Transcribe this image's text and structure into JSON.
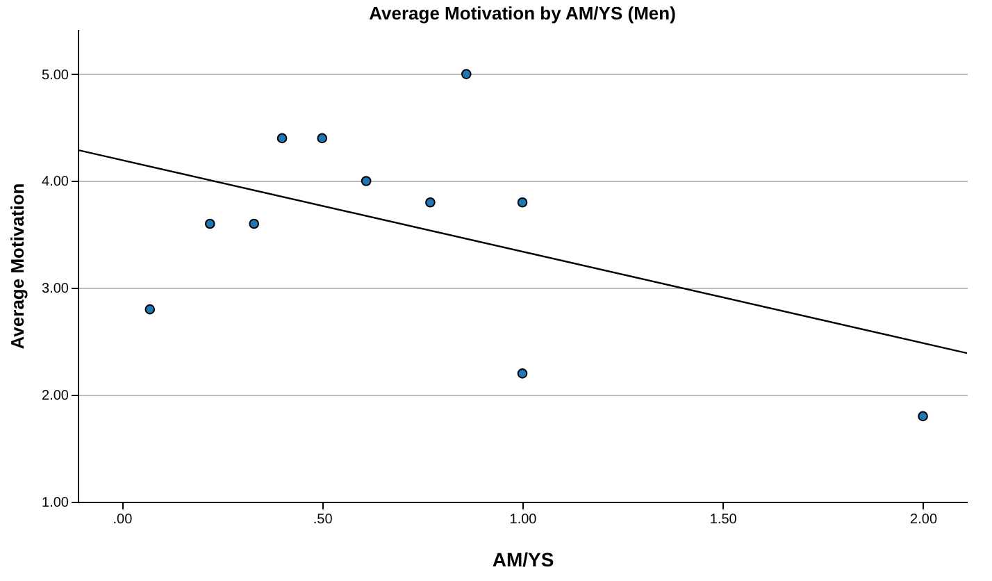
{
  "chart_data": {
    "type": "scatter",
    "title": "Average Motivation by AM/YS (Men)",
    "xlabel": "AM/YS",
    "ylabel": "Average Motivation",
    "series": [
      {
        "color": "#1f77b4",
        "marker": "circle",
        "x": [
          0.07,
          0.22,
          0.33,
          0.4,
          0.5,
          0.61,
          0.77,
          0.86,
          1.0,
          1.0,
          2.0
        ],
        "values": [
          2.8,
          3.6,
          3.6,
          4.4,
          4.4,
          4.0,
          3.8,
          5.0,
          3.8,
          2.2,
          1.8
        ]
      },
      {
        "type": "line",
        "color": "#000000",
        "x": [
          -0.11,
          2.11
        ],
        "values": [
          4.29,
          2.39
        ]
      }
    ],
    "xlim": [
      -0.11,
      2.11
    ],
    "ylim": [
      1,
      5.42
    ],
    "xticks": [
      {
        "value": 0,
        "label": ".00"
      },
      {
        "value": 0.5,
        "label": ".50"
      },
      {
        "value": 1,
        "label": "1.00"
      },
      {
        "value": 1.5,
        "label": "1.50"
      },
      {
        "value": 2,
        "label": "2.00"
      }
    ],
    "yticks": [
      {
        "value": 1,
        "label": "1.00"
      },
      {
        "value": 2,
        "label": "2.00"
      },
      {
        "value": 3,
        "label": "3.00"
      },
      {
        "value": 4,
        "label": "4.00"
      },
      {
        "value": 5,
        "label": "5.00"
      }
    ],
    "grid": "y",
    "line_style": "solid"
  }
}
